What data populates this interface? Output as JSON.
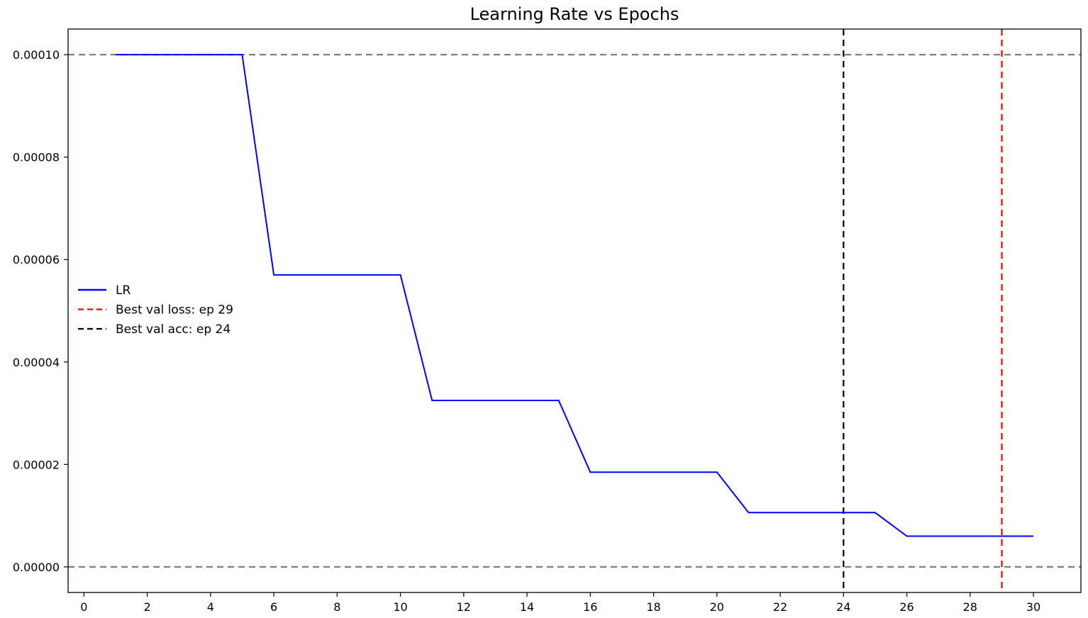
{
  "chart_data": {
    "type": "line",
    "title": "Learning Rate vs Epochs",
    "xlabel": "",
    "ylabel": "",
    "xlim": [
      -0.5,
      31.5
    ],
    "ylim": [
      -5e-06,
      0.000105
    ],
    "x_ticks": [
      0,
      2,
      4,
      6,
      8,
      10,
      12,
      14,
      16,
      18,
      20,
      22,
      24,
      26,
      28,
      30
    ],
    "y_ticks": [
      0.0,
      2e-05,
      4e-05,
      6e-05,
      8e-05,
      0.0001
    ],
    "x_tick_labels": [
      "0",
      "2",
      "4",
      "6",
      "8",
      "10",
      "12",
      "14",
      "16",
      "18",
      "20",
      "22",
      "24",
      "26",
      "28",
      "30"
    ],
    "y_tick_labels": [
      "0.00000",
      "0.00002",
      "0.00004",
      "0.00006",
      "0.00008",
      "0.00010"
    ],
    "grid": false,
    "legend_position": "center-left",
    "series": [
      {
        "name": "LR",
        "color": "#0000ff",
        "style": "solid",
        "x": [
          1,
          2,
          3,
          4,
          5,
          6,
          7,
          8,
          9,
          10,
          11,
          12,
          13,
          14,
          15,
          16,
          17,
          18,
          19,
          20,
          21,
          22,
          23,
          24,
          25,
          26,
          27,
          28,
          29,
          30
        ],
        "y": [
          0.0001,
          0.0001,
          0.0001,
          0.0001,
          0.0001,
          5.7e-05,
          5.7e-05,
          5.7e-05,
          5.7e-05,
          5.7e-05,
          3.25e-05,
          3.25e-05,
          3.25e-05,
          3.25e-05,
          3.25e-05,
          1.85e-05,
          1.85e-05,
          1.85e-05,
          1.85e-05,
          1.85e-05,
          1.06e-05,
          1.06e-05,
          1.06e-05,
          1.06e-05,
          1.06e-05,
          6e-06,
          6e-06,
          6e-06,
          6e-06,
          6e-06
        ]
      }
    ],
    "vertical_lines": [
      {
        "name": "Best val loss: ep 29",
        "x": 29,
        "color": "#ff0000",
        "style": "dashed"
      },
      {
        "name": "Best val acc: ep 24",
        "x": 24,
        "color": "#000000",
        "style": "dashed"
      }
    ],
    "horizontal_lines": [
      {
        "y": 0.0001,
        "color": "#808080",
        "style": "dashed"
      },
      {
        "y": 0.0,
        "color": "#808080",
        "style": "dashed"
      }
    ]
  }
}
